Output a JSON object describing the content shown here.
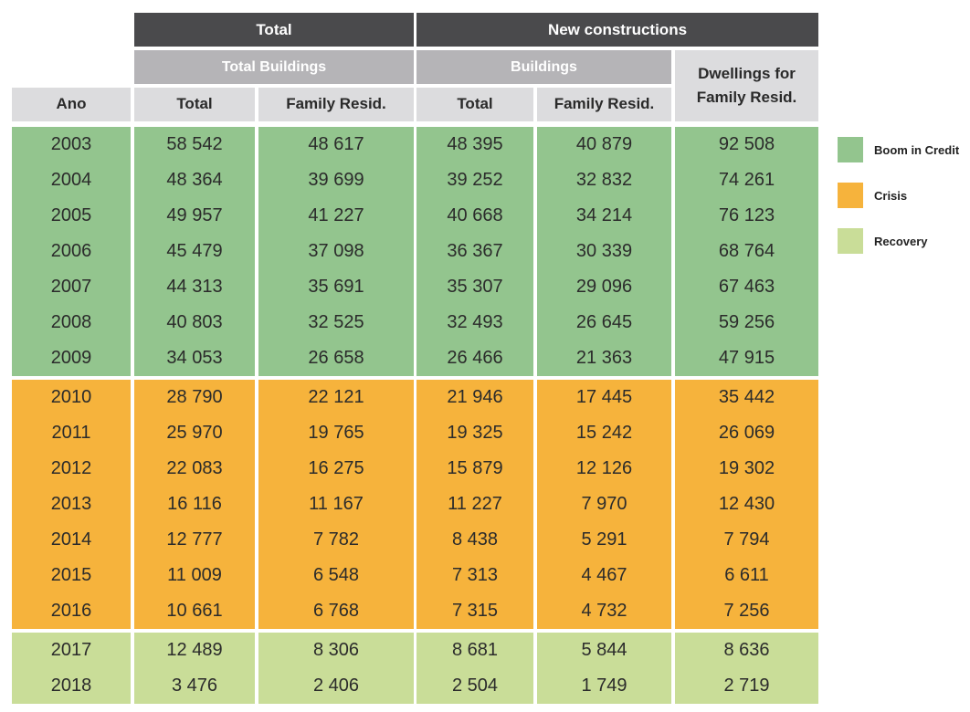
{
  "header": {
    "top_total": "Total",
    "top_new": "New constructions",
    "sub_total_buildings": "Total Buildings",
    "sub_buildings": "Buildings",
    "dwellings": "Dwellings for\nFamily Resid.",
    "columns": [
      "Ano",
      "Total",
      "Family Resid.",
      "Total",
      "Family Resid."
    ]
  },
  "colors": {
    "boom": "#93c58e",
    "crisis": "#f6b33c",
    "recovery": "#c9dd98"
  },
  "legend": [
    {
      "label": "Boom in Credit",
      "period": "boom"
    },
    {
      "label": "Crisis",
      "period": "crisis"
    },
    {
      "label": "Recovery",
      "period": "recovery"
    }
  ],
  "chart_data": {
    "type": "table",
    "columns": [
      "Ano",
      "Total",
      "Family Resid.",
      "Total",
      "Family Resid.",
      "Dwellings for Family Resid."
    ],
    "rows": [
      {
        "period": "boom",
        "cells": [
          "2003",
          "58 542",
          "48 617",
          "48 395",
          "40 879",
          "92 508"
        ]
      },
      {
        "period": "boom",
        "cells": [
          "2004",
          "48 364",
          "39 699",
          "39 252",
          "32 832",
          "74 261"
        ]
      },
      {
        "period": "boom",
        "cells": [
          "2005",
          "49 957",
          "41 227",
          "40 668",
          "34 214",
          "76 123"
        ]
      },
      {
        "period": "boom",
        "cells": [
          "2006",
          "45 479",
          "37 098",
          "36 367",
          "30 339",
          "68 764"
        ]
      },
      {
        "period": "boom",
        "cells": [
          "2007",
          "44 313",
          "35 691",
          "35 307",
          "29 096",
          "67 463"
        ]
      },
      {
        "period": "boom",
        "cells": [
          "2008",
          "40 803",
          "32 525",
          "32 493",
          "26 645",
          "59 256"
        ]
      },
      {
        "period": "boom",
        "cells": [
          "2009",
          "34 053",
          "26 658",
          "26 466",
          "21 363",
          "47 915"
        ]
      },
      {
        "period": "crisis",
        "cells": [
          "2010",
          "28 790",
          "22 121",
          "21 946",
          "17 445",
          "35 442"
        ]
      },
      {
        "period": "crisis",
        "cells": [
          "2011",
          "25 970",
          "19 765",
          "19 325",
          "15 242",
          "26 069"
        ]
      },
      {
        "period": "crisis",
        "cells": [
          "2012",
          "22 083",
          "16 275",
          "15 879",
          "12 126",
          "19 302"
        ]
      },
      {
        "period": "crisis",
        "cells": [
          "2013",
          "16 116",
          "11 167",
          "11 227",
          "7 970",
          "12 430"
        ]
      },
      {
        "period": "crisis",
        "cells": [
          "2014",
          "12 777",
          "7 782",
          "8 438",
          "5 291",
          "7 794"
        ]
      },
      {
        "period": "crisis",
        "cells": [
          "2015",
          "11 009",
          "6 548",
          "7 313",
          "4 467",
          "6 611"
        ]
      },
      {
        "period": "crisis",
        "cells": [
          "2016",
          "10 661",
          "6 768",
          "7 315",
          "4 732",
          "7 256"
        ]
      },
      {
        "period": "recovery",
        "cells": [
          "2017",
          "12 489",
          "8 306",
          "8 681",
          "5 844",
          "8 636"
        ]
      },
      {
        "period": "recovery",
        "cells": [
          "2018",
          "3 476",
          "2 406",
          "2 504",
          "1 749",
          "2 719"
        ]
      }
    ]
  }
}
